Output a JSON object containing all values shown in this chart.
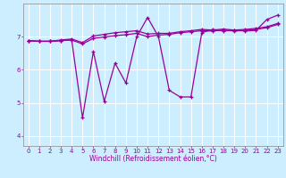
{
  "title": "",
  "xlabel": "Windchill (Refroidissement éolien,°C)",
  "bg_color": "#cceeff",
  "line_color": "#990099",
  "grid_color": "#ffffff",
  "xlim": [
    -0.5,
    23.5
  ],
  "ylim": [
    3.7,
    8.0
  ],
  "yticks": [
    4,
    5,
    6,
    7
  ],
  "xticks": [
    0,
    1,
    2,
    3,
    4,
    5,
    6,
    7,
    8,
    9,
    10,
    11,
    12,
    13,
    14,
    15,
    16,
    17,
    18,
    19,
    20,
    21,
    22,
    23
  ],
  "series1_x": [
    0,
    1,
    2,
    3,
    4,
    5,
    6,
    7,
    8,
    9,
    10,
    11,
    12,
    13,
    14,
    15,
    16,
    17,
    18,
    19,
    20,
    21,
    22,
    23
  ],
  "series1_y": [
    6.88,
    6.86,
    6.86,
    6.88,
    6.9,
    6.78,
    6.95,
    6.99,
    7.03,
    7.06,
    7.1,
    7.0,
    7.05,
    7.07,
    7.12,
    7.15,
    7.18,
    7.17,
    7.2,
    7.17,
    7.19,
    7.22,
    7.27,
    7.37
  ],
  "series2_x": [
    0,
    1,
    2,
    3,
    4,
    5,
    6,
    7,
    8,
    9,
    10,
    11,
    12,
    13,
    14,
    15,
    16,
    17,
    18,
    19,
    20,
    21,
    22,
    23
  ],
  "series2_y": [
    6.88,
    6.86,
    6.86,
    6.88,
    6.9,
    4.55,
    6.55,
    5.05,
    6.2,
    5.6,
    7.0,
    7.58,
    7.0,
    5.38,
    5.18,
    5.18,
    7.12,
    7.22,
    7.17,
    7.2,
    7.17,
    7.19,
    7.52,
    7.65
  ],
  "series3_x": [
    0,
    1,
    2,
    3,
    4,
    5,
    6,
    7,
    8,
    9,
    10,
    11,
    12,
    13,
    14,
    15,
    16,
    17,
    18,
    19,
    20,
    21,
    22,
    23
  ],
  "series3_y": [
    6.88,
    6.86,
    6.86,
    6.9,
    6.93,
    6.82,
    7.02,
    7.07,
    7.12,
    7.15,
    7.18,
    7.08,
    7.1,
    7.1,
    7.15,
    7.18,
    7.22,
    7.2,
    7.23,
    7.2,
    7.22,
    7.25,
    7.3,
    7.4
  ],
  "marker": "+",
  "markersize": 3.5,
  "linewidth": 0.9,
  "tick_fontsize": 5.0,
  "xlabel_fontsize": 5.5
}
